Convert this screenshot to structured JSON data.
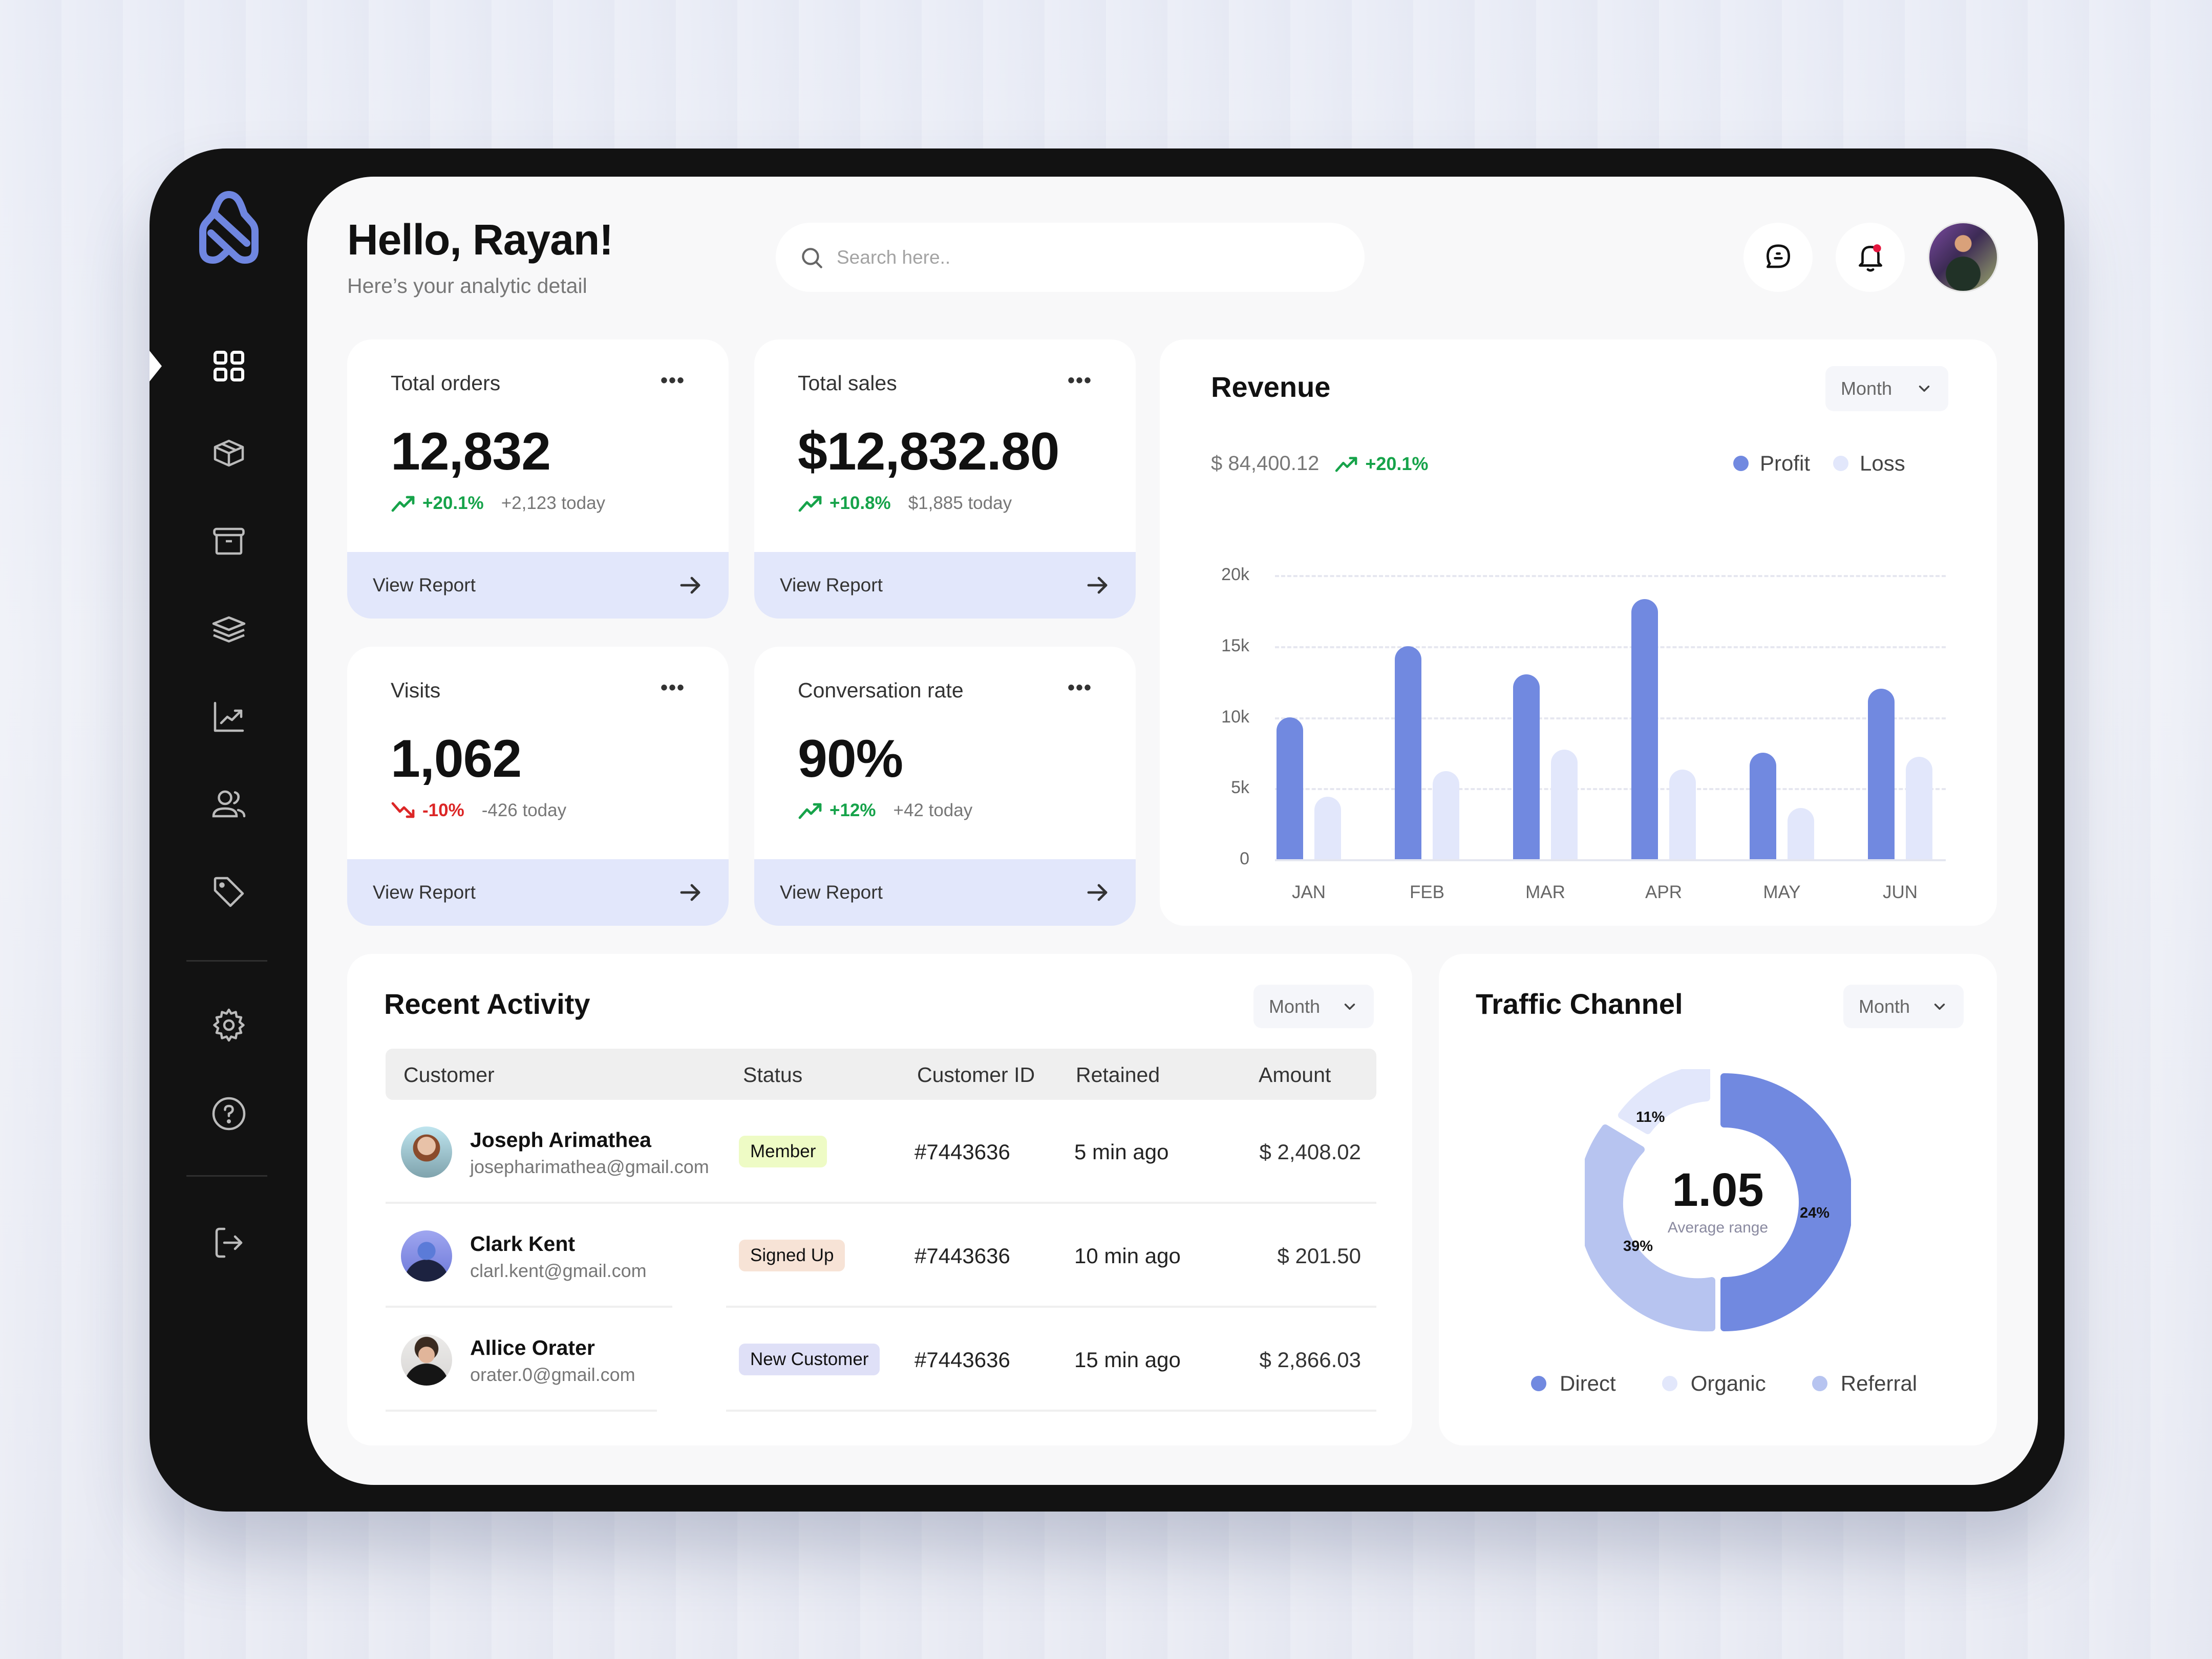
{
  "header": {
    "greeting": "Hello, Rayan!",
    "subtitle": "Here’s your analytic detail",
    "search_placeholder": "Search here.."
  },
  "icons": {
    "logo": "shopping-bag-logo",
    "messages": "chat-bubble-icon",
    "notifications": "bell-icon",
    "notification_dot_color": "#e5173f"
  },
  "sidebar": {
    "items": [
      {
        "name": "dashboard",
        "icon": "grid-icon",
        "active": true
      },
      {
        "name": "products",
        "icon": "box-icon"
      },
      {
        "name": "archive",
        "icon": "archive-icon"
      },
      {
        "name": "layers",
        "icon": "layers-icon"
      },
      {
        "name": "analytics",
        "icon": "chart-line-icon"
      },
      {
        "name": "customers",
        "icon": "users-icon"
      },
      {
        "name": "tags",
        "icon": "tag-icon"
      },
      {
        "name": "settings",
        "icon": "gear-icon"
      },
      {
        "name": "help",
        "icon": "help-circle-icon"
      },
      {
        "name": "logout",
        "icon": "logout-icon"
      }
    ]
  },
  "stats": [
    {
      "title": "Total orders",
      "value": "12,832",
      "change": "+20.1%",
      "direction": "up",
      "today": "+2,123 today",
      "link": "View Report"
    },
    {
      "title": "Total sales",
      "value": "$12,832.80",
      "change": "+10.8%",
      "direction": "up",
      "today": "$1,885 today",
      "link": "View Report"
    },
    {
      "title": "Visits",
      "value": "1,062",
      "change": "-10%",
      "direction": "down",
      "today": "-426 today",
      "link": "View Report"
    },
    {
      "title": "Conversation rate",
      "value": "90%",
      "change": "+12%",
      "direction": "up",
      "today": "+42 today",
      "link": "View Report"
    }
  ],
  "more_label": "•••",
  "revenue": {
    "title": "Revenue",
    "period": "Month",
    "total": "$ 84,400.12",
    "change": "+20.1%",
    "legend": [
      {
        "label": "Profit",
        "color": "#7189e0"
      },
      {
        "label": "Loss",
        "color": "#e2e7fb"
      }
    ]
  },
  "chart_data": {
    "type": "bar",
    "title": "Revenue",
    "categories": [
      "JAN",
      "FEB",
      "MAR",
      "APR",
      "MAY",
      "JUN"
    ],
    "series": [
      {
        "name": "Profit",
        "color": "#7189e0",
        "values": [
          10000,
          15000,
          13000,
          18300,
          7500,
          12000
        ]
      },
      {
        "name": "Loss",
        "color": "#e2e7fb",
        "values": [
          4400,
          6200,
          7700,
          6300,
          3600,
          7200
        ]
      }
    ],
    "ytick_labels": [
      "20k",
      "15k",
      "10k",
      "5k",
      "0"
    ],
    "ylim": [
      0,
      20000
    ],
    "grid": true,
    "legend_position": "top-right",
    "xlabel": "",
    "ylabel": ""
  },
  "activity": {
    "title": "Recent Activity",
    "period": "Month",
    "columns": [
      "Customer",
      "Status",
      "Customer ID",
      "Retained",
      "Amount"
    ],
    "rows": [
      {
        "name": "Joseph Arimathea",
        "email": "josepharimathea@gmail.com",
        "status": "Member",
        "status_color": "#eefbc5",
        "id": "#7443636",
        "retained": "5 min ago",
        "amount": "$ 2,408.02"
      },
      {
        "name": "Clark Kent",
        "email": "clarl.kent@gmail.com",
        "status": "Signed Up",
        "status_color": "#f7e3d6",
        "id": "#7443636",
        "retained": "10 min ago",
        "amount": "$ 201.50"
      },
      {
        "name": "Allice Orater",
        "email": "orater.0@gmail.com",
        "status": "New Customer",
        "status_color": "#dfe0f7",
        "id": "#7443636",
        "retained": "15 min ago",
        "amount": "$ 2,866.03"
      }
    ]
  },
  "traffic": {
    "title": "Traffic Channel",
    "period": "Month",
    "center_value": "1.05",
    "center_label": "Average range",
    "segments": [
      {
        "label": "Direct",
        "pct": "24%",
        "color": "#7189e0"
      },
      {
        "label": "Organic",
        "pct": "11%",
        "color": "#e2e7fb"
      },
      {
        "label": "Referral",
        "pct": "39%",
        "color": "#b7c4f0"
      }
    ]
  }
}
